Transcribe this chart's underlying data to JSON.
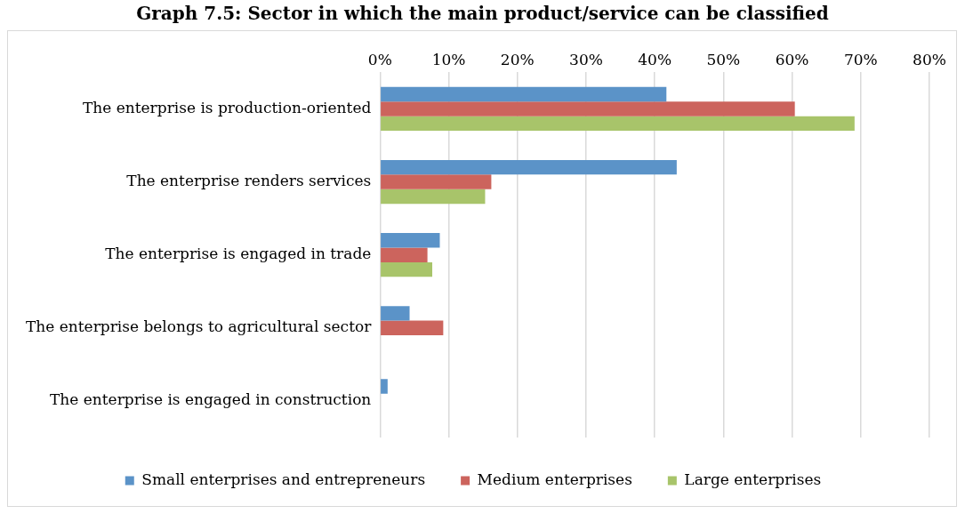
{
  "chart_data": {
    "type": "bar",
    "orientation": "horizontal",
    "title": "Graph 7.5: Sector in which the main product/service can be classified",
    "categories": [
      "The enterprise is production-oriented",
      "The enterprise renders services",
      "The enterprise is engaged in trade",
      "The enterprise belongs to agricultural sector",
      "The enterprise is engaged in construction"
    ],
    "series": [
      {
        "name": "Small enterprises and entrepreneurs",
        "color": "#5b93c8",
        "values": [
          41.7,
          43.2,
          8.7,
          4.3,
          1.1
        ]
      },
      {
        "name": "Medium enterprises",
        "color": "#cc645d",
        "values": [
          60.4,
          16.2,
          6.9,
          9.2,
          0
        ]
      },
      {
        "name": "Large enterprises",
        "color": "#a8c46a",
        "values": [
          69.1,
          15.3,
          7.6,
          0,
          0
        ]
      }
    ],
    "xlim": [
      0,
      80
    ],
    "xticks": [
      {
        "value": 0,
        "label": "0%"
      },
      {
        "value": 10,
        "label": "10%"
      },
      {
        "value": 20,
        "label": "20%"
      },
      {
        "value": 30,
        "label": "30%"
      },
      {
        "value": 40,
        "label": "40%"
      },
      {
        "value": 50,
        "label": "50%"
      },
      {
        "value": 60,
        "label": "60%"
      },
      {
        "value": 70,
        "label": "70%"
      },
      {
        "value": 80,
        "label": "80%"
      }
    ],
    "grid": "x",
    "legend": "bottom"
  }
}
